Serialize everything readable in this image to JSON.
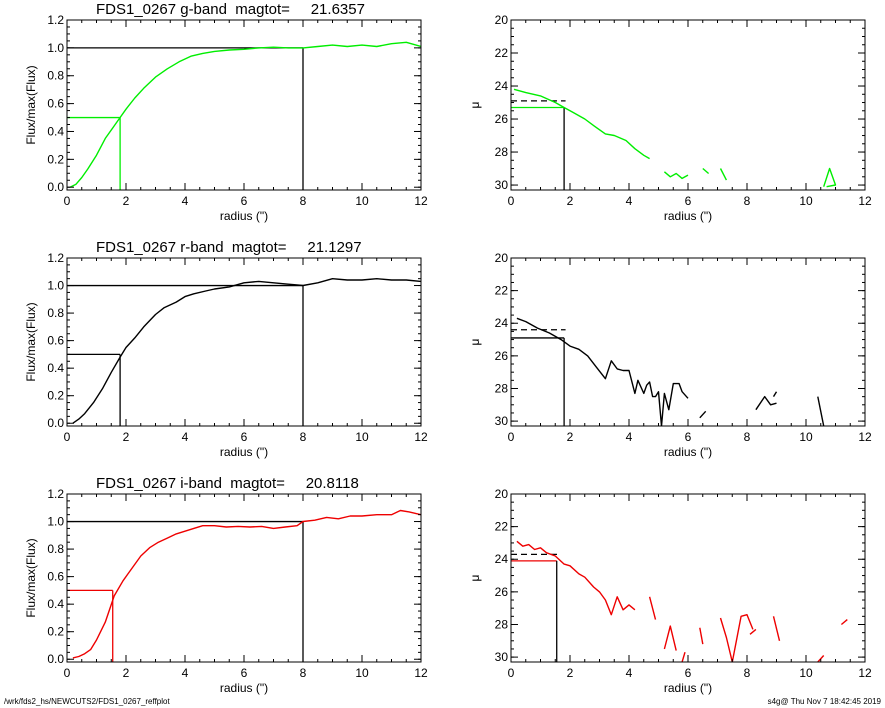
{
  "chart_data": [
    {
      "type": "line",
      "title": "FDS1_0267 g-band  magtot=     21.6357",
      "xlabel": "radius (\")",
      "ylabel": "Flux/max(Flux)",
      "xlim": [
        0,
        12
      ],
      "ylim": [
        -0.02,
        1.2
      ],
      "xticks": [
        0,
        2,
        4,
        6,
        8,
        10,
        12
      ],
      "yticks": [
        "0.0",
        "0.2",
        "0.4",
        "0.6",
        "0.8",
        "1.0",
        "1.2"
      ],
      "color": "#00ee00",
      "series": [
        {
          "x": [
            0.1,
            0.3,
            0.5,
            0.7,
            1.0,
            1.3,
            1.6,
            1.8,
            2.0,
            2.3,
            2.6,
            3.0,
            3.4,
            3.8,
            4.2,
            4.6,
            5.0,
            5.5,
            6.0,
            6.5,
            7.0,
            7.5,
            8.0,
            8.5,
            9.0,
            9.5,
            10.0,
            10.5,
            11.0,
            11.5,
            12.0
          ],
          "y": [
            0.0,
            0.02,
            0.07,
            0.13,
            0.23,
            0.35,
            0.44,
            0.5,
            0.56,
            0.64,
            0.71,
            0.79,
            0.85,
            0.9,
            0.94,
            0.96,
            0.975,
            0.985,
            0.99,
            1.0,
            1.005,
            1.0,
            1.0,
            1.01,
            1.02,
            1.01,
            1.02,
            1.01,
            1.03,
            1.04,
            1.01
          ]
        }
      ],
      "reference_lines": [
        {
          "kind": "horizontal",
          "y": 1.0,
          "x_from": 0,
          "x_to": 8,
          "color": "#000000"
        },
        {
          "kind": "vertical",
          "x": 8,
          "y_from": -0.02,
          "y_to": 1.0,
          "color": "#000000"
        },
        {
          "kind": "horizontal",
          "y": 0.5,
          "x_from": 0,
          "x_to": 1.8,
          "color": "#00ee00"
        },
        {
          "kind": "vertical",
          "x": 1.8,
          "y_from": -0.02,
          "y_to": 0.5,
          "color": "#00ee00"
        }
      ]
    },
    {
      "type": "line",
      "title": "",
      "xlabel": "radius (\")",
      "ylabel": "μ",
      "xlim": [
        0,
        12
      ],
      "ylim": [
        20,
        30.3
      ],
      "y_inverted": true,
      "xticks": [
        0,
        2,
        4,
        6,
        8,
        10,
        12
      ],
      "yticks": [
        20,
        22,
        24,
        26,
        28,
        30
      ],
      "color": "#00ee00",
      "series": [
        {
          "x": [
            0.1,
            0.5,
            1.0,
            1.5,
            1.8,
            2.1,
            2.5,
            2.8,
            3.2,
            3.5,
            3.9,
            4.2,
            4.5,
            4.7
          ],
          "y": [
            24.2,
            24.4,
            24.6,
            25.0,
            25.3,
            25.6,
            26.0,
            26.4,
            26.9,
            27.0,
            27.3,
            27.8,
            28.2,
            28.4
          ]
        },
        {
          "x": [
            5.2,
            5.4,
            5.6,
            5.8,
            6.0
          ],
          "y": [
            29.2,
            29.5,
            29.3,
            29.6,
            29.4
          ]
        },
        {
          "x": [
            6.5,
            6.7
          ],
          "y": [
            29.0,
            29.3
          ]
        },
        {
          "x": [
            7.1,
            7.3
          ],
          "y": [
            29.0,
            29.7
          ]
        },
        {
          "x": [
            10.6,
            10.8,
            11.0,
            10.7
          ],
          "y": [
            30.1,
            29.0,
            30.0,
            30.1
          ]
        }
      ],
      "reference_lines": [
        {
          "kind": "horizontal",
          "y": 24.9,
          "x_from": 0,
          "x_to": 1.85,
          "color": "#000000",
          "dash": true
        },
        {
          "kind": "horizontal",
          "y": 25.3,
          "x_from": 0,
          "x_to": 1.8,
          "color": "#00ee00"
        },
        {
          "kind": "vertical",
          "x": 1.8,
          "y_from": 25.3,
          "y_to": 30.3,
          "color": "#000000"
        }
      ]
    },
    {
      "type": "line",
      "title": "FDS1_0267 r-band  magtot=     21.1297",
      "xlabel": "radius (\")",
      "ylabel": "Flux/max(Flux)",
      "xlim": [
        0,
        12
      ],
      "ylim": [
        -0.02,
        1.2
      ],
      "xticks": [
        0,
        2,
        4,
        6,
        8,
        10,
        12
      ],
      "yticks": [
        "0.0",
        "0.2",
        "0.4",
        "0.6",
        "0.8",
        "1.0",
        "1.2"
      ],
      "color": "#000000",
      "series": [
        {
          "x": [
            0.2,
            0.4,
            0.6,
            0.9,
            1.2,
            1.5,
            1.8,
            2.0,
            2.3,
            2.6,
            3.0,
            3.3,
            3.7,
            4.0,
            4.3,
            4.7,
            5.0,
            5.5,
            6.0,
            6.5,
            7.0,
            7.5,
            8.0,
            8.5,
            9.0,
            9.5,
            10.0,
            10.5,
            11.0,
            11.5,
            12.0
          ],
          "y": [
            0.0,
            0.03,
            0.07,
            0.15,
            0.25,
            0.37,
            0.48,
            0.55,
            0.62,
            0.7,
            0.79,
            0.84,
            0.88,
            0.92,
            0.94,
            0.96,
            0.975,
            0.99,
            1.02,
            1.03,
            1.02,
            1.01,
            1.0,
            1.02,
            1.05,
            1.04,
            1.04,
            1.05,
            1.04,
            1.04,
            1.03
          ]
        }
      ],
      "reference_lines": [
        {
          "kind": "horizontal",
          "y": 1.0,
          "x_from": 0,
          "x_to": 8,
          "color": "#000000"
        },
        {
          "kind": "vertical",
          "x": 8,
          "y_from": -0.02,
          "y_to": 1.0,
          "color": "#000000"
        },
        {
          "kind": "horizontal",
          "y": 0.5,
          "x_from": 0,
          "x_to": 1.8,
          "color": "#000000"
        },
        {
          "kind": "vertical",
          "x": 1.8,
          "y_from": -0.02,
          "y_to": 0.5,
          "color": "#000000"
        }
      ]
    },
    {
      "type": "line",
      "title": "",
      "xlabel": "radius (\")",
      "ylabel": "μ",
      "xlim": [
        0,
        12
      ],
      "ylim": [
        20,
        30.3
      ],
      "y_inverted": true,
      "xticks": [
        0,
        2,
        4,
        6,
        8,
        10,
        12
      ],
      "yticks": [
        20,
        22,
        24,
        26,
        28,
        30
      ],
      "color": "#000000",
      "series": [
        {
          "x": [
            0.2,
            0.5,
            0.9,
            1.3,
            1.7,
            2.0,
            2.3,
            2.6,
            2.9,
            3.2,
            3.4,
            3.6,
            3.8,
            4.0,
            4.2,
            4.3,
            4.5,
            4.6,
            4.7,
            4.8,
            4.9,
            5.0,
            5.1,
            5.2,
            5.35,
            5.5,
            5.7,
            5.8,
            6.0
          ],
          "y": [
            23.7,
            23.9,
            24.3,
            24.6,
            25.0,
            25.4,
            25.6,
            26.0,
            26.7,
            27.4,
            26.3,
            26.8,
            26.9,
            26.9,
            28.3,
            27.5,
            28.3,
            27.8,
            27.6,
            28.5,
            28.5,
            28.2,
            30.3,
            28.3,
            29.3,
            27.7,
            27.7,
            28.2,
            28.6
          ]
        },
        {
          "x": [
            6.4,
            6.6
          ],
          "y": [
            29.8,
            29.4
          ]
        },
        {
          "x": [
            8.3,
            8.6,
            8.8,
            9.0
          ],
          "y": [
            29.3,
            28.5,
            29.0,
            28.9
          ]
        },
        {
          "x": [
            8.9,
            9.0
          ],
          "y": [
            28.5,
            28.2
          ]
        },
        {
          "x": [
            10.4,
            10.6
          ],
          "y": [
            28.5,
            30.3
          ]
        }
      ],
      "reference_lines": [
        {
          "kind": "horizontal",
          "y": 24.4,
          "x_from": 0,
          "x_to": 1.85,
          "color": "#000000",
          "dash": true
        },
        {
          "kind": "horizontal",
          "y": 24.9,
          "x_from": 0,
          "x_to": 1.8,
          "color": "#000000"
        },
        {
          "kind": "vertical",
          "x": 1.8,
          "y_from": 24.9,
          "y_to": 30.3,
          "color": "#000000"
        }
      ]
    },
    {
      "type": "line",
      "title": "FDS1_0267 i-band  magtot=     20.8118",
      "xlabel": "radius (\")",
      "ylabel": "Flux/max(Flux)",
      "xlim": [
        0,
        12
      ],
      "ylim": [
        -0.02,
        1.2
      ],
      "xticks": [
        0,
        2,
        4,
        6,
        8,
        10,
        12
      ],
      "yticks": [
        "0.0",
        "0.2",
        "0.4",
        "0.6",
        "0.8",
        "1.0",
        "1.2"
      ],
      "color": "#ee0000",
      "series": [
        {
          "x": [
            0.2,
            0.4,
            0.6,
            0.8,
            1.0,
            1.3,
            1.6,
            1.9,
            2.2,
            2.5,
            2.8,
            3.1,
            3.4,
            3.7,
            4.0,
            4.3,
            4.6,
            5.0,
            5.4,
            5.8,
            6.2,
            6.6,
            7.0,
            7.4,
            7.8,
            8.0,
            8.4,
            8.8,
            9.2,
            9.6,
            10.0,
            10.5,
            11.0,
            11.3,
            11.6,
            12.0
          ],
          "y": [
            0.01,
            0.02,
            0.04,
            0.07,
            0.14,
            0.27,
            0.46,
            0.57,
            0.66,
            0.75,
            0.81,
            0.85,
            0.88,
            0.91,
            0.93,
            0.95,
            0.97,
            0.97,
            0.96,
            0.965,
            0.96,
            0.965,
            0.95,
            0.96,
            0.97,
            1.0,
            1.01,
            1.03,
            1.02,
            1.04,
            1.04,
            1.05,
            1.05,
            1.08,
            1.07,
            1.05
          ]
        }
      ],
      "reference_lines": [
        {
          "kind": "horizontal",
          "y": 1.0,
          "x_from": 0,
          "x_to": 8,
          "color": "#000000"
        },
        {
          "kind": "vertical",
          "x": 8,
          "y_from": -0.02,
          "y_to": 1.0,
          "color": "#000000"
        },
        {
          "kind": "horizontal",
          "y": 0.5,
          "x_from": 0,
          "x_to": 1.55,
          "color": "#ee0000"
        },
        {
          "kind": "vertical",
          "x": 1.55,
          "y_from": -0.02,
          "y_to": 0.5,
          "color": "#ee0000"
        }
      ]
    },
    {
      "type": "line",
      "title": "",
      "xlabel": "radius (\")",
      "ylabel": "μ",
      "xlim": [
        0,
        12
      ],
      "ylim": [
        20,
        30.3
      ],
      "y_inverted": true,
      "xticks": [
        0,
        2,
        4,
        6,
        8,
        10,
        12
      ],
      "yticks": [
        20,
        22,
        24,
        26,
        28,
        30
      ],
      "color": "#ee0000",
      "series": [
        {
          "x": [
            0.2,
            0.4,
            0.6,
            0.8,
            1.0,
            1.2,
            1.5,
            1.8,
            2.0,
            2.3,
            2.5,
            2.8,
            3.0,
            3.2,
            3.4,
            3.6,
            3.8,
            4.0,
            4.2
          ],
          "y": [
            22.9,
            23.2,
            23.1,
            23.4,
            23.3,
            23.6,
            23.8,
            24.3,
            24.4,
            24.9,
            25.1,
            25.7,
            26.0,
            26.5,
            27.4,
            26.3,
            27.1,
            26.8,
            27.1
          ]
        },
        {
          "x": [
            4.7,
            4.9
          ],
          "y": [
            26.3,
            27.7
          ]
        },
        {
          "x": [
            5.2,
            5.4,
            5.6
          ],
          "y": [
            29.5,
            28.1,
            29.6
          ]
        },
        {
          "x": [
            5.8,
            5.9
          ],
          "y": [
            30.3,
            29.7
          ]
        },
        {
          "x": [
            6.4,
            6.5
          ],
          "y": [
            28.2,
            29.2
          ]
        },
        {
          "x": [
            7.1,
            7.3,
            7.5,
            7.8,
            8.0,
            8.2
          ],
          "y": [
            27.6,
            28.8,
            30.3,
            27.5,
            27.4,
            28.3
          ]
        },
        {
          "x": [
            8.1,
            8.3
          ],
          "y": [
            28.6,
            28.3
          ]
        },
        {
          "x": [
            8.9,
            9.1
          ],
          "y": [
            27.5,
            29.0
          ]
        },
        {
          "x": [
            10.4,
            10.6
          ],
          "y": [
            30.3,
            29.9
          ]
        },
        {
          "x": [
            11.2,
            11.4
          ],
          "y": [
            28.0,
            27.7
          ]
        }
      ],
      "reference_lines": [
        {
          "kind": "horizontal",
          "y": 23.7,
          "x_from": 0,
          "x_to": 1.6,
          "color": "#000000",
          "dash": true
        },
        {
          "kind": "horizontal",
          "y": 24.1,
          "x_from": 0,
          "x_to": 1.55,
          "color": "#ee0000"
        },
        {
          "kind": "vertical",
          "x": 1.55,
          "y_from": 24.1,
          "y_to": 30.3,
          "color": "#000000"
        }
      ]
    }
  ],
  "footer": {
    "left": "/wrk/fds2_hs/NEWCUTS2/FDS1_0267_reffplot",
    "right": "s4g@  Thu Nov  7 18:42:45 2019"
  }
}
